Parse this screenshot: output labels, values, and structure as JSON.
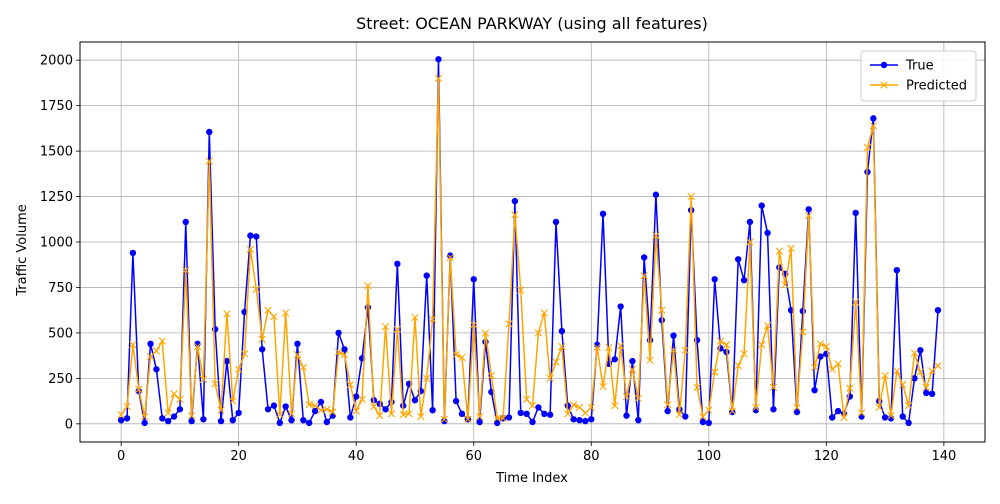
{
  "chart_data": {
    "type": "line",
    "title": "Street: OCEAN PARKWAY (using all features)",
    "xlabel": "Time Index",
    "ylabel": "Traffic Volume",
    "xlim": [
      -7,
      147
    ],
    "ylim": [
      -100,
      2100
    ],
    "xticks": [
      0,
      20,
      40,
      60,
      80,
      100,
      120,
      140
    ],
    "yticks": [
      0,
      250,
      500,
      750,
      1000,
      1250,
      1500,
      1750,
      2000
    ],
    "grid": true,
    "legend_position": "top-right",
    "series": [
      {
        "name": "True",
        "color": "#0000ff",
        "marker": "circle",
        "values": [
          20,
          30,
          940,
          180,
          5,
          440,
          300,
          30,
          15,
          40,
          80,
          1110,
          15,
          440,
          25,
          1605,
          520,
          15,
          345,
          20,
          60,
          615,
          1035,
          1030,
          410,
          80,
          100,
          5,
          95,
          20,
          440,
          20,
          5,
          70,
          120,
          10,
          45,
          500,
          410,
          35,
          150,
          360,
          640,
          130,
          110,
          80,
          120,
          880,
          100,
          220,
          130,
          180,
          815,
          75,
          2005,
          15,
          925,
          125,
          55,
          25,
          795,
          10,
          450,
          175,
          5,
          30,
          35,
          1225,
          60,
          55,
          10,
          90,
          55,
          50,
          1110,
          510,
          100,
          25,
          20,
          15,
          25,
          435,
          1155,
          330,
          355,
          645,
          45,
          345,
          20,
          915,
          460,
          1260,
          570,
          70,
          485,
          80,
          40,
          1175,
          460,
          10,
          5,
          795,
          415,
          395,
          65,
          905,
          790,
          1110,
          75,
          1200,
          1050,
          80,
          860,
          825,
          625,
          65,
          620,
          1180,
          185,
          370,
          385,
          35,
          70,
          55,
          150,
          1160,
          40,
          1385,
          1680,
          125,
          35,
          30,
          845,
          40,
          5,
          250,
          405,
          170,
          165,
          625
        ]
      },
      {
        "name": "Predicted",
        "color": "#ffa500",
        "marker": "x",
        "values": [
          50,
          95,
          435,
          190,
          40,
          370,
          400,
          455,
          60,
          165,
          135,
          845,
          45,
          425,
          245,
          1445,
          220,
          75,
          605,
          125,
          300,
          385,
          960,
          740,
          465,
          625,
          590,
          50,
          610,
          55,
          380,
          310,
          105,
          100,
          75,
          80,
          65,
          395,
          380,
          215,
          70,
          135,
          760,
          95,
          45,
          535,
          55,
          520,
          50,
          55,
          585,
          40,
          250,
          575,
          1900,
          25,
          915,
          380,
          365,
          25,
          545,
          40,
          500,
          265,
          30,
          30,
          550,
          1150,
          735,
          135,
          100,
          500,
          610,
          250,
          340,
          425,
          55,
          105,
          90,
          60,
          90,
          420,
          205,
          420,
          100,
          430,
          150,
          300,
          140,
          815,
          350,
          1035,
          625,
          105,
          405,
          50,
          405,
          1250,
          200,
          40,
          75,
          285,
          455,
          435,
          70,
          320,
          385,
          1000,
          90,
          435,
          540,
          200,
          950,
          765,
          965,
          90,
          505,
          1145,
          310,
          440,
          425,
          300,
          330,
          35,
          195,
          670,
          60,
          1520,
          1640,
          90,
          265,
          45,
          290,
          215,
          100,
          390,
          285,
          200,
          290,
          320
        ]
      }
    ]
  }
}
